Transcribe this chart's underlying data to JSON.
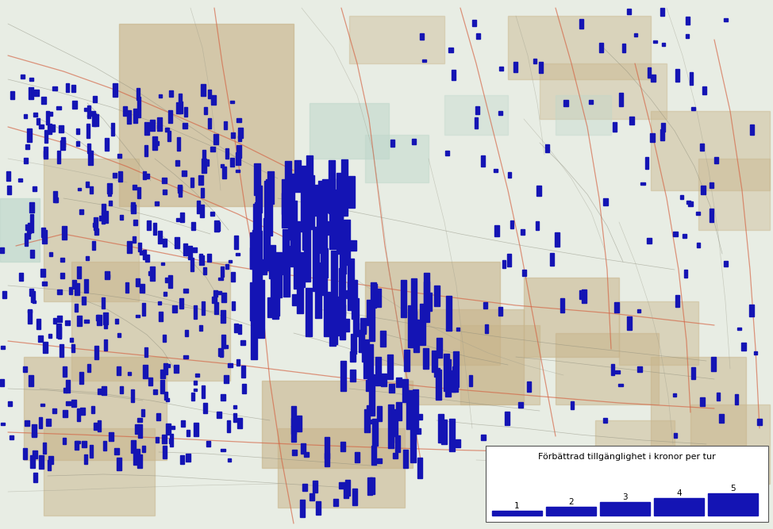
{
  "fig_width": 9.74,
  "fig_height": 6.67,
  "dpi": 100,
  "bar_color": "#1414b4",
  "legend_title": "Förbättrad tillgänglighet i kronor per tur",
  "legend_values": [
    1,
    2,
    3,
    4,
    5
  ],
  "map_bg": "#e8ede4",
  "urban_color": "#c8b48a",
  "road_major": "#d46040",
  "road_minor": "#888877",
  "road_light": "#aaaaaa",
  "water_color": "#c0d8cc",
  "seed": 42
}
